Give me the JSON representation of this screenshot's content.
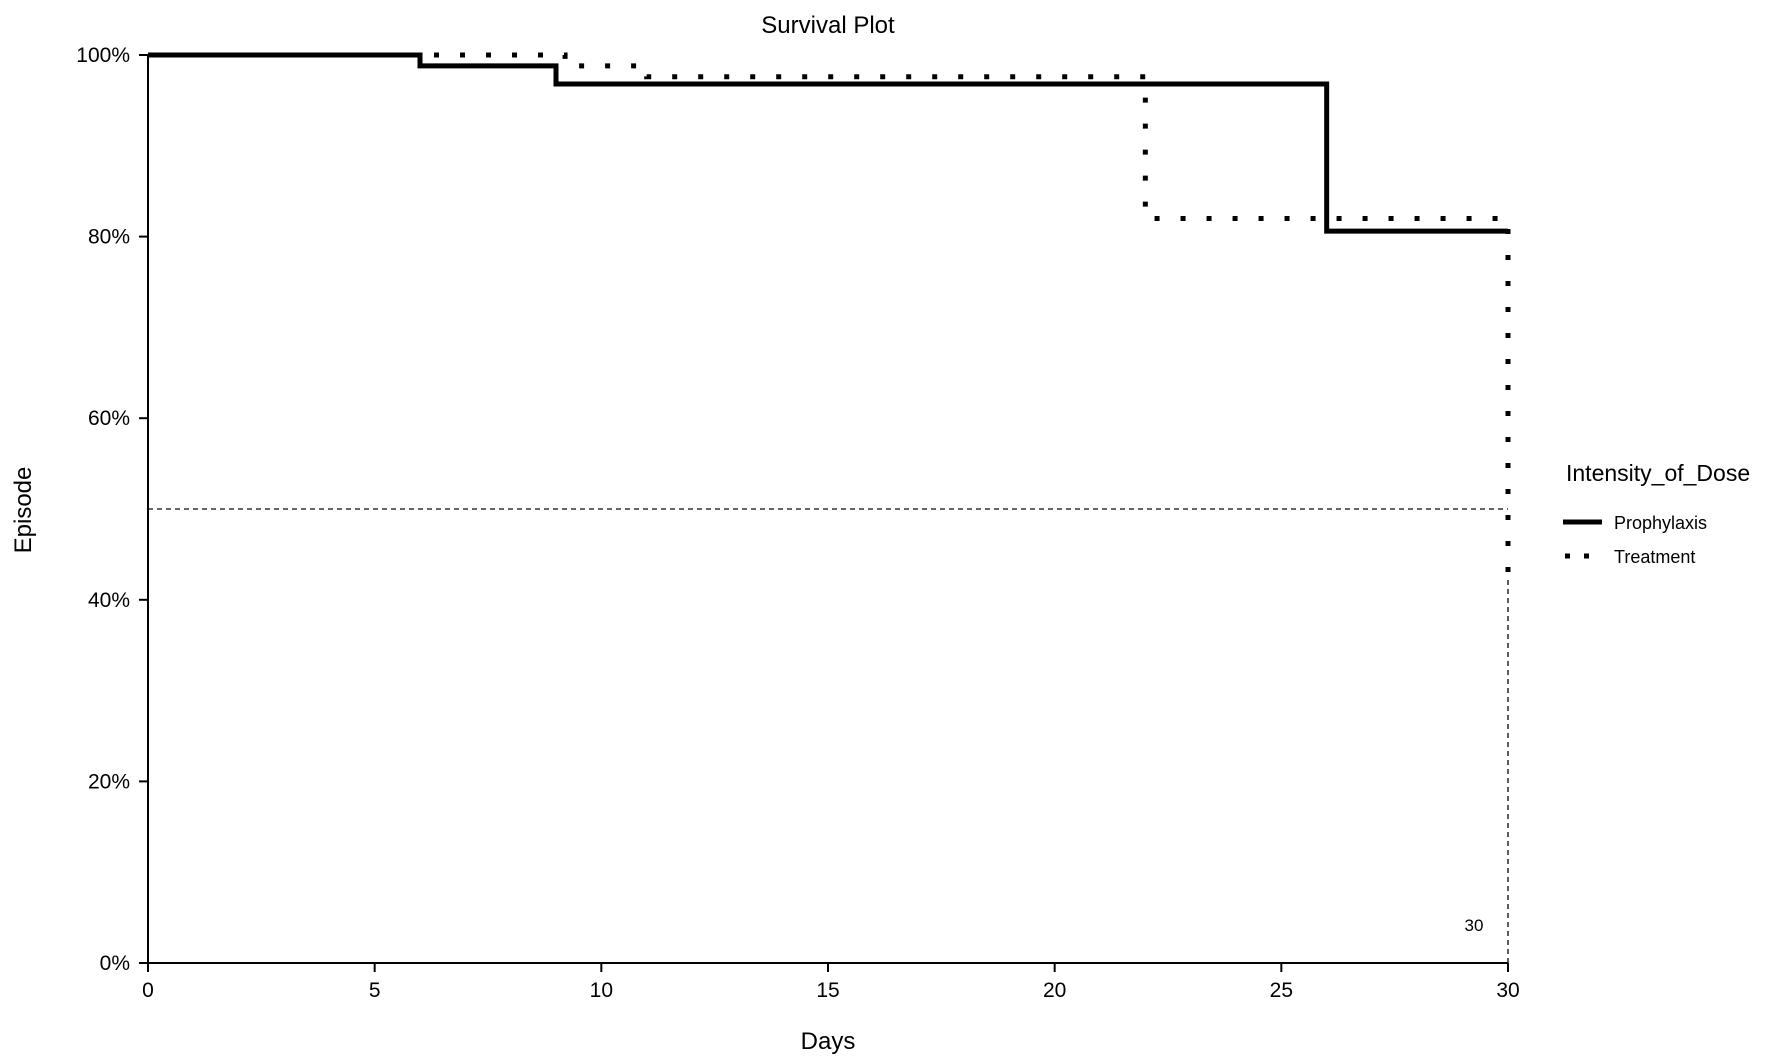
{
  "chart_data": {
    "type": "line",
    "title": "Survival Plot",
    "xlabel": "Days",
    "ylabel": "Episode",
    "xlim": [
      0,
      30
    ],
    "ylim": [
      0,
      100
    ],
    "x_ticks": [
      0,
      5,
      10,
      15,
      20,
      25,
      30
    ],
    "x_tick_labels": [
      "0",
      "5",
      "10",
      "15",
      "20",
      "25",
      "30"
    ],
    "y_ticks": [
      0,
      20,
      40,
      60,
      80,
      100
    ],
    "y_tick_labels": [
      "0%",
      "20%",
      "40%",
      "60%",
      "80%",
      "100%"
    ],
    "grid": false,
    "legend": {
      "title": "Intensity_of_Dose",
      "position": "right",
      "entries": [
        "Prophylaxis",
        "Treatment"
      ]
    },
    "series": [
      {
        "name": "Prophylaxis",
        "style": "solid",
        "color": "#000000",
        "steps": [
          [
            0,
            100
          ],
          [
            6,
            98.8
          ],
          [
            9,
            96.8
          ],
          [
            26,
            80.6
          ],
          [
            30,
            80.6
          ]
        ]
      },
      {
        "name": "Treatment",
        "style": "dotted",
        "color": "#000000",
        "steps": [
          [
            0,
            100
          ],
          [
            6.7,
            100
          ],
          [
            9.2,
            98.8
          ],
          [
            11,
            97.6
          ],
          [
            22,
            82
          ],
          [
            30,
            82
          ],
          [
            30,
            42.5
          ]
        ]
      }
    ],
    "reference_lines": [
      {
        "type": "horizontal",
        "y": 50,
        "style": "dashed"
      },
      {
        "type": "vertical",
        "x": 30,
        "style": "dashed"
      }
    ],
    "annotations": [
      {
        "text": "30",
        "x": 29.25,
        "y": 3.5
      }
    ]
  }
}
